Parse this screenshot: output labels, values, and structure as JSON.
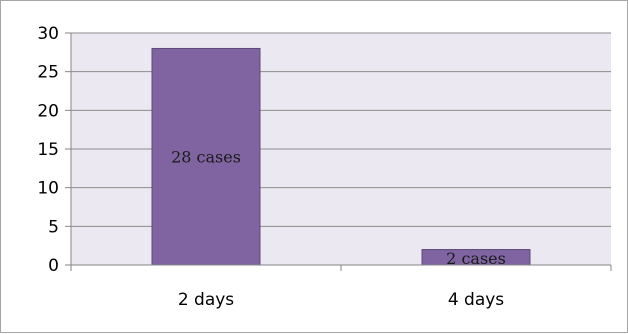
{
  "chart_data": {
    "type": "bar",
    "categories": [
      "2 days",
      "4 days"
    ],
    "values": [
      28,
      2
    ],
    "data_labels": [
      "28 cases",
      "2 cases"
    ],
    "title": "",
    "xlabel": "",
    "ylabel": "",
    "ylim": [
      0,
      30
    ],
    "yticks": [
      0,
      5,
      10,
      15,
      20,
      25,
      30
    ],
    "grid": true,
    "legend": "none",
    "colors": {
      "bar": "#8064a2",
      "bar_border": "#5c4a7a",
      "plot_background": "#ece8f1",
      "gridline": "#8c8c8c",
      "axis": "#868686"
    }
  }
}
